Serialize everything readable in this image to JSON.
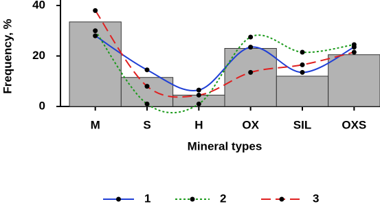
{
  "chart_data": {
    "type": "bar",
    "x_label": "Mineral types",
    "y_label": "Frequency, %",
    "categories": [
      "M",
      "S",
      "H",
      "OX",
      "SIL",
      "OXS"
    ],
    "values": [
      33.5,
      11.5,
      4.5,
      23,
      12,
      20.5
    ],
    "color": "#b3b3b3",
    "ylim": [
      0,
      40
    ],
    "yticks": [
      0,
      20,
      40
    ],
    "series": [
      {
        "name": "1",
        "color": "#1f3fd6",
        "dash": "none",
        "values": [
          28,
          14.5,
          6.5,
          23.5,
          13.5,
          23.5
        ]
      },
      {
        "name": "2",
        "color": "#1a9a1a",
        "dash": "3,3",
        "values": [
          30,
          1,
          1,
          27.5,
          21.5,
          24.5
        ]
      },
      {
        "name": "3",
        "color": "#e02020",
        "dash": "14,7",
        "values": [
          38,
          8,
          4.5,
          13.5,
          16.5,
          21.5
        ]
      }
    ]
  }
}
